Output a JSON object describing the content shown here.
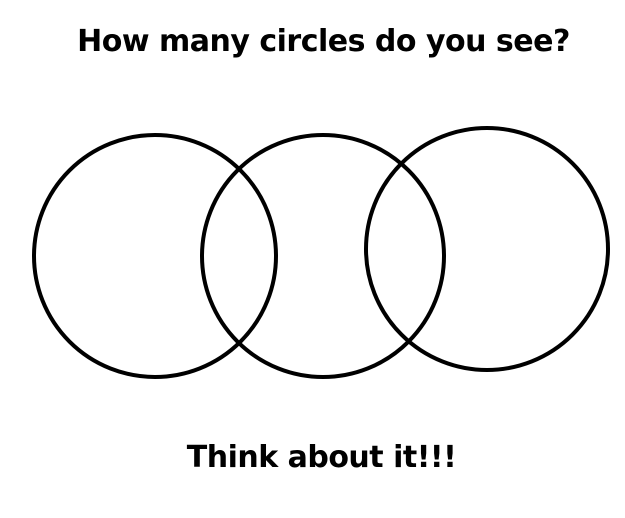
{
  "question": "How many circles do you see?",
  "prompt": "Think about it!!!",
  "colors": {
    "background": "#ffffff",
    "stroke": "#000000"
  },
  "circles": [
    {
      "name": "left-circle"
    },
    {
      "name": "middle-circle"
    },
    {
      "name": "right-circle"
    }
  ]
}
